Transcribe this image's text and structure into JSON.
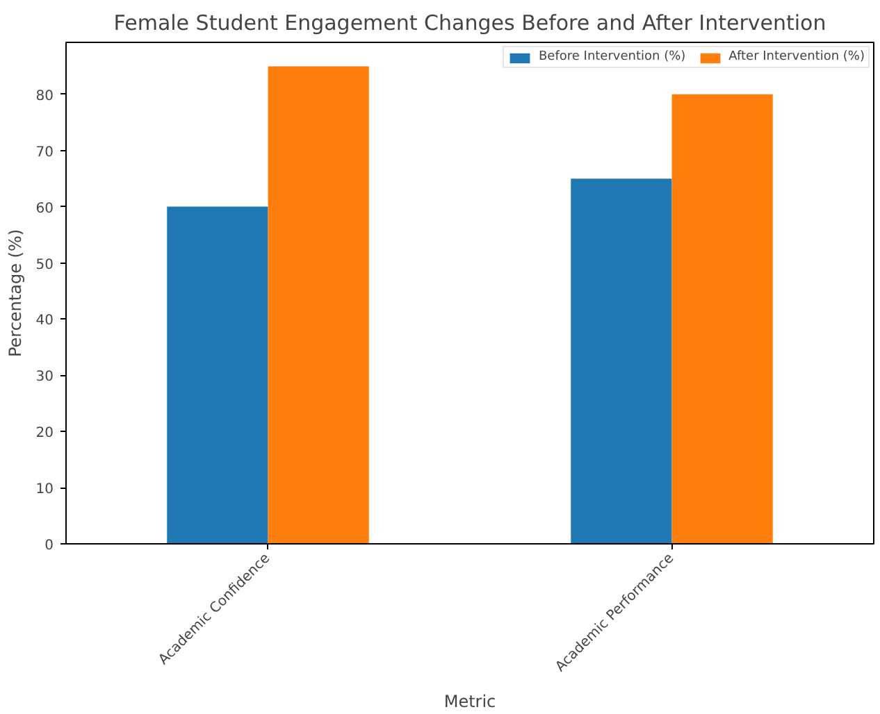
{
  "chart_data": {
    "type": "bar",
    "title": "Female Student Engagement Changes Before and After Intervention",
    "xlabel": "Metric",
    "ylabel": "Percentage (%)",
    "categories": [
      "Academic Confidence",
      "Academic Performance"
    ],
    "series": [
      {
        "name": "Before Intervention (%)",
        "color": "#1f77b4",
        "values": [
          60,
          65
        ]
      },
      {
        "name": "After Intervention (%)",
        "color": "#ff7f0e",
        "values": [
          85,
          80
        ]
      }
    ],
    "ylim": [
      0,
      89.25
    ],
    "yticks": [
      0,
      10,
      20,
      30,
      40,
      50,
      60,
      70,
      80
    ],
    "grid": false,
    "legend": "top right"
  }
}
